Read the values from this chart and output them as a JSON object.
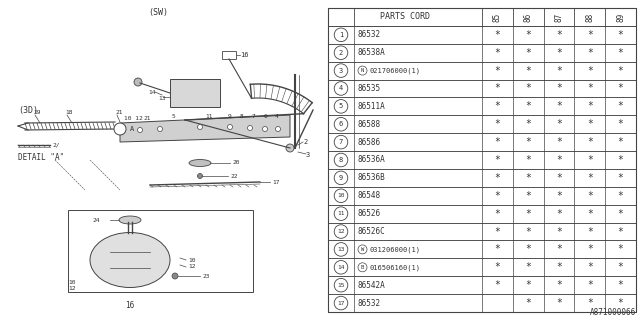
{
  "fig_id": "A871000066",
  "bg_color": "#ffffff",
  "line_color": "#444444",
  "text_color": "#333333",
  "col_headers": [
    "85",
    "86",
    "87",
    "88",
    "89"
  ],
  "parts": [
    {
      "num": "1",
      "code": "86532",
      "prefix": "",
      "stars": [
        1,
        1,
        1,
        1,
        1
      ]
    },
    {
      "num": "2",
      "code": "86538A",
      "prefix": "",
      "stars": [
        1,
        1,
        1,
        1,
        1
      ]
    },
    {
      "num": "3",
      "code": "021706000(1)",
      "prefix": "N",
      "stars": [
        1,
        1,
        1,
        1,
        1
      ]
    },
    {
      "num": "4",
      "code": "86535",
      "prefix": "",
      "stars": [
        1,
        1,
        1,
        1,
        1
      ]
    },
    {
      "num": "5",
      "code": "86511A",
      "prefix": "",
      "stars": [
        1,
        1,
        1,
        1,
        1
      ]
    },
    {
      "num": "6",
      "code": "86588",
      "prefix": "",
      "stars": [
        1,
        1,
        1,
        1,
        1
      ]
    },
    {
      "num": "7",
      "code": "86586",
      "prefix": "",
      "stars": [
        1,
        1,
        1,
        1,
        1
      ]
    },
    {
      "num": "8",
      "code": "86536A",
      "prefix": "",
      "stars": [
        1,
        1,
        1,
        1,
        1
      ]
    },
    {
      "num": "9",
      "code": "86536B",
      "prefix": "",
      "stars": [
        1,
        1,
        1,
        1,
        1
      ]
    },
    {
      "num": "10",
      "code": "86548",
      "prefix": "",
      "stars": [
        1,
        1,
        1,
        1,
        1
      ]
    },
    {
      "num": "11",
      "code": "86526",
      "prefix": "",
      "stars": [
        1,
        1,
        1,
        1,
        1
      ]
    },
    {
      "num": "12",
      "code": "86526C",
      "prefix": "",
      "stars": [
        1,
        1,
        1,
        1,
        1
      ]
    },
    {
      "num": "13",
      "code": "031206000(1)",
      "prefix": "W",
      "stars": [
        1,
        1,
        1,
        1,
        1
      ]
    },
    {
      "num": "14",
      "code": "016506160(1)",
      "prefix": "B",
      "stars": [
        1,
        1,
        1,
        1,
        1
      ]
    },
    {
      "num": "15",
      "code": "86542A",
      "prefix": "",
      "stars": [
        1,
        1,
        1,
        1,
        1
      ]
    },
    {
      "num": "17",
      "code": "86532",
      "prefix": "",
      "stars": [
        0,
        1,
        1,
        1,
        1
      ]
    }
  ]
}
